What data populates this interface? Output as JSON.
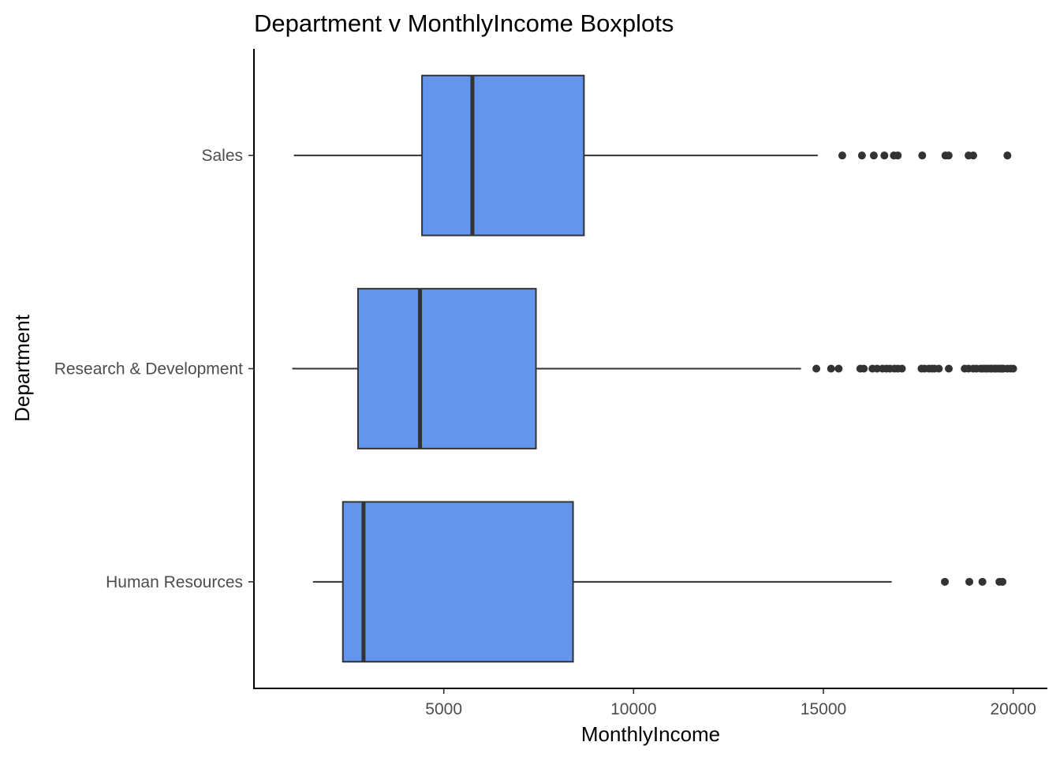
{
  "chart_data": {
    "type": "boxplot",
    "orientation": "horizontal",
    "title": "Department v MonthlyIncome Boxplots",
    "xlabel": "MonthlyIncome",
    "ylabel": "Department",
    "xlim": [
      0,
      20900
    ],
    "x_ticks": [
      5000,
      10000,
      15000,
      20000
    ],
    "x_tick_labels": [
      "5000",
      "10000",
      "15000",
      "20000"
    ],
    "categories": [
      "Human Resources",
      "Research & Development",
      "Sales"
    ],
    "boxes": [
      {
        "category": "Human Resources",
        "whisker_low": 1555,
        "q1": 2342,
        "median": 2886,
        "q3": 8405,
        "whisker_high": 16799,
        "outliers": [
          18200,
          18844,
          19189,
          19636,
          19717
        ]
      },
      {
        "category": "Research & Development",
        "whisker_low": 1009,
        "q1": 2741,
        "median": 4374,
        "q3": 7428,
        "whisker_high": 14411,
        "outliers": [
          14814,
          15202,
          15402,
          15972,
          16064,
          16291,
          16413,
          16555,
          16659,
          16752,
          16872,
          16959,
          17068,
          17584,
          17665,
          17779,
          17861,
          17924,
          18041,
          18303,
          18722,
          18824,
          18947,
          19033,
          19144,
          19202,
          19272,
          19328,
          19406,
          19431,
          19502,
          19545,
          19613,
          19665,
          19701,
          19740,
          19845,
          19926,
          19999
        ]
      },
      {
        "category": "Sales",
        "whisker_low": 1052,
        "q1": 4427,
        "median": 5754,
        "q3": 8692,
        "whisker_high": 14852,
        "outliers": [
          15497,
          16015,
          16328,
          16606,
          16856,
          16959,
          17603,
          18213,
          18300,
          18824,
          18947,
          19847
        ]
      }
    ],
    "box_fill": "#6495ED",
    "stroke_color": "#333333",
    "grid": false,
    "legend": "none"
  }
}
